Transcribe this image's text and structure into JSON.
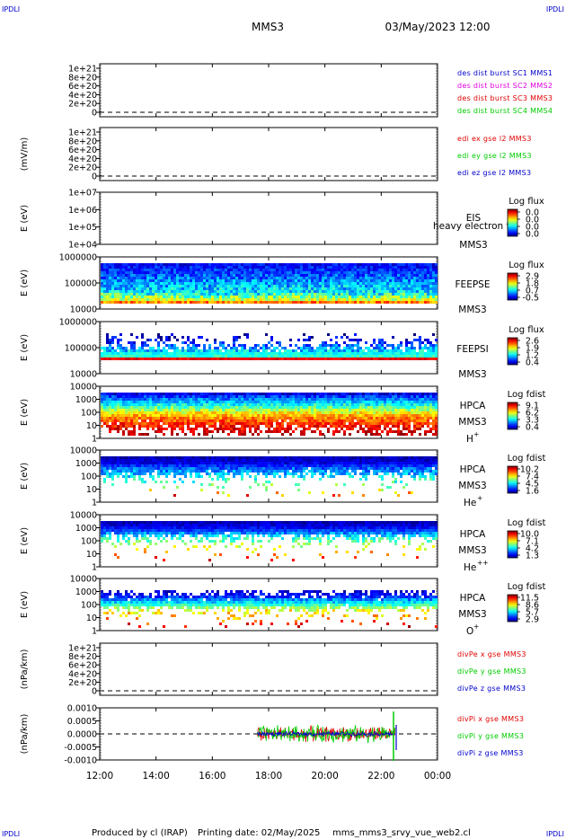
{
  "corner_labels": {
    "top_left": "IPDLI",
    "top_right": "IPDLI",
    "bottom_left": "IPDLI",
    "bottom_right": "IPDLI"
  },
  "header": {
    "spacecraft": "MMS3",
    "datetime": "03/May/2023 12:00"
  },
  "footer": {
    "produced_by": "Produced by cl (IRAP)",
    "printing_date": "Printing date: 02/May/2025",
    "script_name": "mms_mms3_srvy_vue_web2.cl"
  },
  "x_axis": {
    "ticks": [
      "12:00",
      "14:00",
      "16:00",
      "18:00",
      "20:00",
      "22:00",
      "00:00"
    ],
    "tick_hours": [
      12,
      14,
      16,
      18,
      20,
      22,
      24
    ],
    "range_hours": [
      12,
      24
    ]
  },
  "colors": {
    "red": "#e00000",
    "magenta": "#e000e0",
    "green": "#00cc00",
    "blue": "#0000cc",
    "dark_red": "#a00000"
  },
  "chart_data": [
    {
      "id": "des_density",
      "type": "line",
      "ylabel": "",
      "yticks": [
        "1e+21",
        "8e+20",
        "6e+20",
        "4e+20",
        "2e+20",
        "0"
      ],
      "legend": [
        {
          "text": "des dist burst SC1 MMS1",
          "color": "#0000cc"
        },
        {
          "text": "des dist burst SC2 MMS2",
          "color": "#e000e0"
        },
        {
          "text": "des dist burst SC3 MMS3",
          "color": "#e00000"
        },
        {
          "text": "des dist burst SC4 MMS4",
          "color": "#00cc00"
        }
      ],
      "series": [],
      "zero_line": true
    },
    {
      "id": "edi_e",
      "type": "line",
      "ylabel": "(mV/m)",
      "yticks": [
        "1e+21",
        "8e+20",
        "6e+20",
        "4e+20",
        "2e+20",
        "0"
      ],
      "legend": [
        {
          "text": "edi ex gse l2 MMS3",
          "color": "#e00000"
        },
        {
          "text": "edi ey gse l2 MMS3",
          "color": "#00cc00"
        },
        {
          "text": "edi ez gse l2 MMS3",
          "color": "#0000cc"
        }
      ],
      "series": [],
      "zero_line": true
    },
    {
      "id": "eis",
      "type": "heatmap",
      "ylabel": "E (eV)",
      "yticks": [
        "1e+07",
        "1e+06",
        "1e+05",
        "1e+04"
      ],
      "labels": [
        "EIS",
        "MMS3"
      ],
      "overlay_text": "heavy electron to",
      "colorbar": {
        "title": "Log flux",
        "ticks": [
          "0.0",
          "0.0",
          "0.0",
          "0.0"
        ]
      },
      "data_present": false
    },
    {
      "id": "feeps_e",
      "type": "heatmap",
      "ylabel": "E (eV)",
      "yticks": [
        "1000000",
        "100000",
        "10000"
      ],
      "labels": [
        "FEEPSE",
        "MMS3"
      ],
      "colorbar": {
        "title": "Log flux",
        "ticks": [
          "2.9",
          "1.8",
          "0.7",
          "-0.5"
        ]
      },
      "data_present": true
    },
    {
      "id": "feeps_i",
      "type": "heatmap",
      "ylabel": "E (eV)",
      "yticks": [
        "1000000",
        "100000",
        "10000"
      ],
      "labels": [
        "FEEPSI",
        "MMS3"
      ],
      "colorbar": {
        "title": "Log flux",
        "ticks": [
          "2.6",
          "1.9",
          "1.2",
          "0.4"
        ]
      },
      "data_present": true
    },
    {
      "id": "hpca_h",
      "type": "heatmap",
      "ylabel": "E (eV)",
      "yticks": [
        "10000",
        "1000",
        "100",
        "10",
        "1"
      ],
      "labels": [
        "HPCA",
        "MMS3"
      ],
      "species": {
        "base": "H",
        "sup": "+"
      },
      "colorbar": {
        "title": "Log fdist",
        "ticks": [
          "9.1",
          "6.2",
          "3.3",
          "0.4"
        ]
      },
      "data_present": true
    },
    {
      "id": "hpca_he",
      "type": "heatmap",
      "ylabel": "E (eV)",
      "yticks": [
        "10000",
        "1000",
        "100",
        "10",
        "1"
      ],
      "labels": [
        "HPCA",
        "MMS3"
      ],
      "species": {
        "base": "He",
        "sup": "+"
      },
      "colorbar": {
        "title": "Log fdist",
        "ticks": [
          "10.2",
          "7.4",
          "4.5",
          "1.6"
        ]
      },
      "data_present": true
    },
    {
      "id": "hpca_hepp",
      "type": "heatmap",
      "ylabel": "E (eV)",
      "yticks": [
        "10000",
        "1000",
        "100",
        "10",
        "1"
      ],
      "labels": [
        "HPCA",
        "MMS3"
      ],
      "species": {
        "base": "He",
        "sup": "++"
      },
      "colorbar": {
        "title": "Log fdist",
        "ticks": [
          "10.0",
          "7.1",
          "4.2",
          "1.3"
        ]
      },
      "data_present": true
    },
    {
      "id": "hpca_o",
      "type": "heatmap",
      "ylabel": "E (eV)",
      "yticks": [
        "10000",
        "1000",
        "100",
        "10",
        "1"
      ],
      "labels": [
        "HPCA",
        "MMS3"
      ],
      "species": {
        "base": "O",
        "sup": "+"
      },
      "colorbar": {
        "title": "Log fdist",
        "ticks": [
          "11.5",
          "8.6",
          "5.7",
          "2.9"
        ]
      },
      "data_present": true
    },
    {
      "id": "divpe",
      "type": "line",
      "ylabel": "(nPa/km)",
      "yticks": [
        "1e+21",
        "8e+20",
        "6e+20",
        "4e+20",
        "2e+20",
        "0"
      ],
      "legend": [
        {
          "text": "divPe x gse MMS3",
          "color": "#e00000"
        },
        {
          "text": "divPe y gse MMS3",
          "color": "#00cc00"
        },
        {
          "text": "divPe z gse MMS3",
          "color": "#0000cc"
        }
      ],
      "series": [],
      "zero_line": true
    },
    {
      "id": "divpi",
      "type": "line",
      "ylabel": "(nPa/km)",
      "yticks": [
        "0.0010",
        "0.0005",
        "0.0000",
        "-0.0005",
        "-0.0010"
      ],
      "ylim": [
        -0.0012,
        0.0012
      ],
      "legend": [
        {
          "text": "divPi x gse MMS3",
          "color": "#e00000"
        },
        {
          "text": "divPi y gse MMS3",
          "color": "#00cc00"
        },
        {
          "text": "divPi z gse MMS3",
          "color": "#0000cc"
        }
      ],
      "data_span_hours": [
        17.6,
        22.5
      ],
      "amplitude": [
        0.0004,
        0.00045,
        0.00012
      ],
      "zero_line": true
    }
  ]
}
